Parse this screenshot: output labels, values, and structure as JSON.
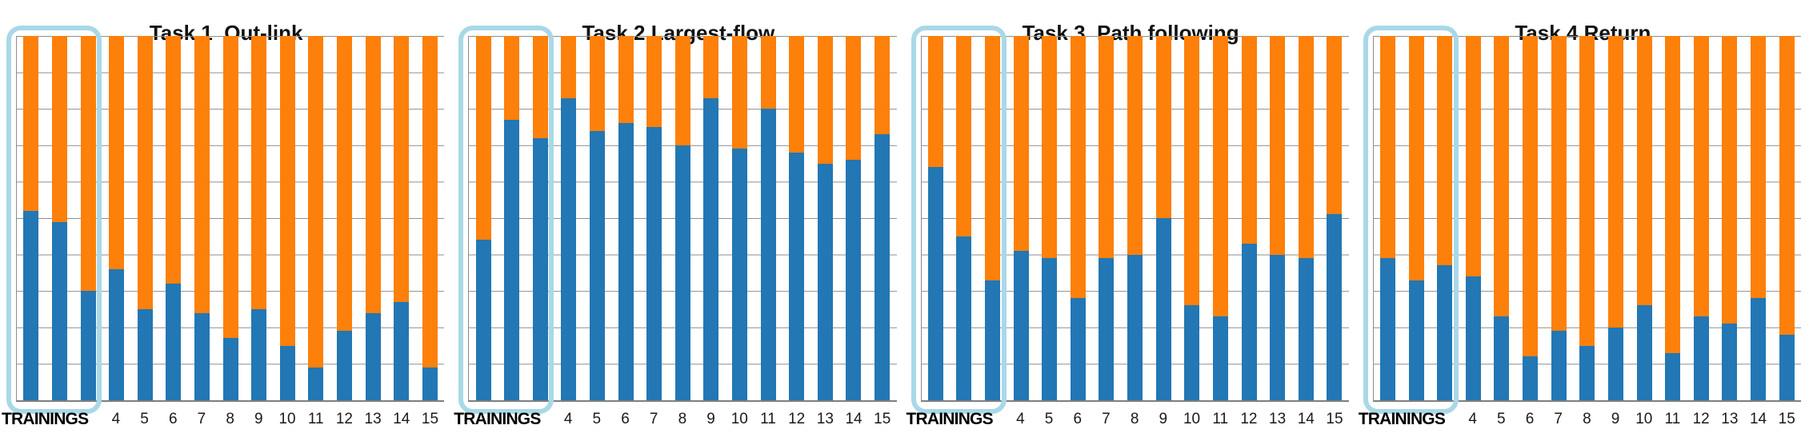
{
  "figure": {
    "background": "#ffffff",
    "description": "Four 100%-stacked bar charts comparing blue vs orange share per training 1-15, first three trainings outlined"
  },
  "colors": {
    "blue_series": "#2277b4",
    "orange_series": "#fc800a",
    "gridline": "#8c8c8c",
    "axis": "#7f7f7f",
    "highlight_box": "#a9d8e8",
    "tick_label": "#1a1a1a",
    "title": "#111111"
  },
  "chart_data": [
    {
      "type": "bar",
      "stacked": true,
      "stack_total": 1.0,
      "title": "Task 1  Out-link",
      "x_axis_label": "TRAININGS",
      "n_bars": 15,
      "tick_start_bar": 4,
      "tick_labels": [
        "4",
        "5",
        "6",
        "7",
        "8",
        "9",
        "10",
        "11",
        "12",
        "13",
        "14",
        "15"
      ],
      "ylim": [
        0,
        1
      ],
      "gridline_step": 0.1,
      "legend": "none",
      "highlighted_bar_range": [
        1,
        3
      ],
      "series": [
        {
          "name": "blue-bottom",
          "color": "#2277b4",
          "values": [
            0.52,
            0.49,
            0.3,
            0.36,
            0.25,
            0.32,
            0.24,
            0.17,
            0.25,
            0.15,
            0.09,
            0.19,
            0.24,
            0.27,
            0.09
          ]
        },
        {
          "name": "orange-top",
          "color": "#fc800a",
          "values": [
            0.48,
            0.51,
            0.7,
            0.64,
            0.75,
            0.68,
            0.76,
            0.83,
            0.75,
            0.85,
            0.91,
            0.81,
            0.76,
            0.73,
            0.91
          ]
        }
      ]
    },
    {
      "type": "bar",
      "stacked": true,
      "stack_total": 1.0,
      "title": "Task 2 Largest-flow",
      "x_axis_label": "TRAININGS",
      "n_bars": 15,
      "tick_start_bar": 4,
      "tick_labels": [
        "4",
        "5",
        "6",
        "7",
        "8",
        "9",
        "10",
        "11",
        "12",
        "13",
        "14",
        "15"
      ],
      "ylim": [
        0,
        1
      ],
      "gridline_step": 0.1,
      "legend": "none",
      "highlighted_bar_range": [
        1,
        3
      ],
      "series": [
        {
          "name": "blue-bottom",
          "color": "#2277b4",
          "values": [
            0.44,
            0.77,
            0.72,
            0.83,
            0.74,
            0.76,
            0.75,
            0.7,
            0.83,
            0.69,
            0.8,
            0.68,
            0.65,
            0.66,
            0.73
          ]
        },
        {
          "name": "orange-top",
          "color": "#fc800a",
          "values": [
            0.56,
            0.23,
            0.28,
            0.17,
            0.26,
            0.24,
            0.25,
            0.3,
            0.17,
            0.31,
            0.2,
            0.32,
            0.35,
            0.34,
            0.27
          ]
        }
      ]
    },
    {
      "type": "bar",
      "stacked": true,
      "stack_total": 1.0,
      "title": "Task 3  Path following",
      "x_axis_label": "TRAININGS",
      "n_bars": 15,
      "tick_start_bar": 4,
      "tick_labels": [
        "4",
        "5",
        "6",
        "7",
        "8",
        "9",
        "10",
        "11",
        "12",
        "13",
        "14",
        "15"
      ],
      "ylim": [
        0,
        1
      ],
      "gridline_step": 0.1,
      "legend": "none",
      "highlighted_bar_range": [
        1,
        3
      ],
      "series": [
        {
          "name": "blue-bottom",
          "color": "#2277b4",
          "values": [
            0.64,
            0.45,
            0.33,
            0.41,
            0.39,
            0.28,
            0.39,
            0.4,
            0.5,
            0.26,
            0.23,
            0.43,
            0.4,
            0.39,
            0.51
          ]
        },
        {
          "name": "orange-top",
          "color": "#fc800a",
          "values": [
            0.36,
            0.55,
            0.67,
            0.59,
            0.61,
            0.72,
            0.61,
            0.6,
            0.5,
            0.74,
            0.77,
            0.57,
            0.6,
            0.61,
            0.49
          ]
        }
      ]
    },
    {
      "type": "bar",
      "stacked": true,
      "stack_total": 1.0,
      "title": "Task 4 Return",
      "x_axis_label": "TRAININGS",
      "n_bars": 15,
      "tick_start_bar": 4,
      "tick_labels": [
        "4",
        "5",
        "6",
        "7",
        "8",
        "9",
        "10",
        "11",
        "12",
        "13",
        "14",
        "15"
      ],
      "ylim": [
        0,
        1
      ],
      "gridline_step": 0.1,
      "legend": "none",
      "highlighted_bar_range": [
        1,
        3
      ],
      "series": [
        {
          "name": "blue-bottom",
          "color": "#2277b4",
          "values": [
            0.39,
            0.33,
            0.37,
            0.34,
            0.23,
            0.12,
            0.19,
            0.15,
            0.2,
            0.26,
            0.13,
            0.23,
            0.21,
            0.28,
            0.18
          ]
        },
        {
          "name": "orange-top",
          "color": "#fc800a",
          "values": [
            0.61,
            0.67,
            0.63,
            0.66,
            0.77,
            0.88,
            0.81,
            0.85,
            0.8,
            0.74,
            0.87,
            0.77,
            0.79,
            0.72,
            0.82
          ]
        }
      ]
    }
  ]
}
